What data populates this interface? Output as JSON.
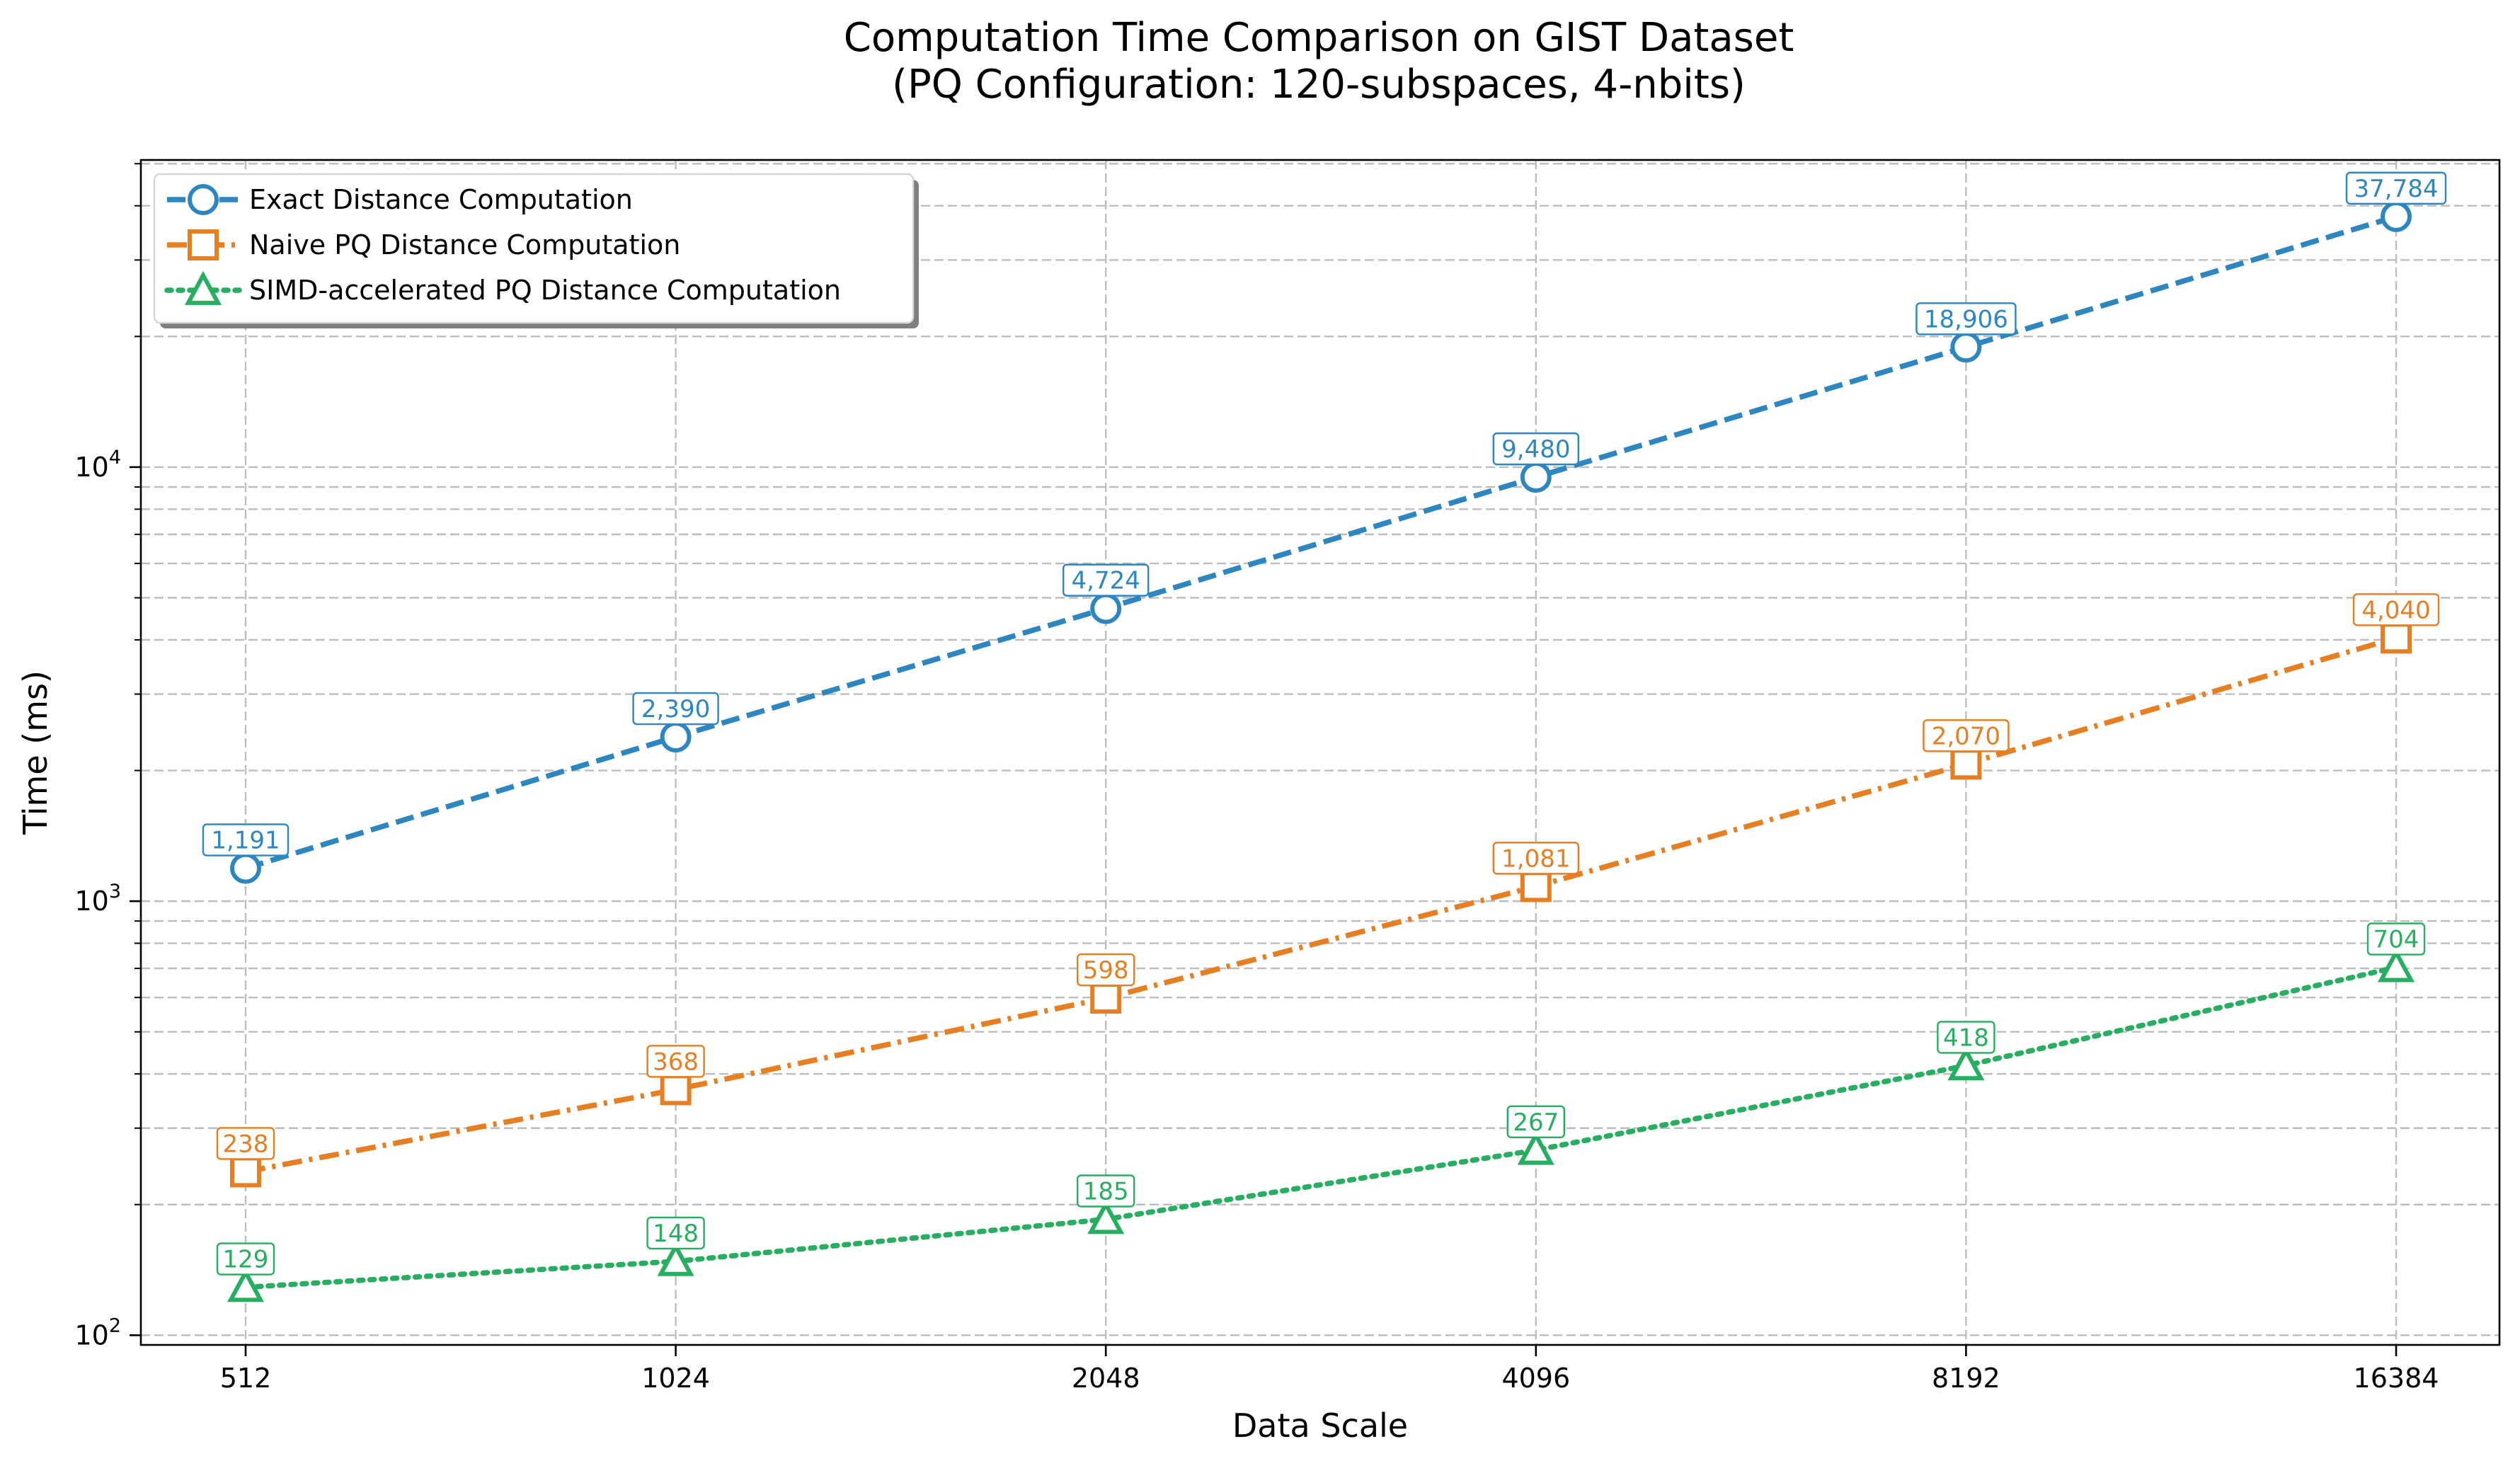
{
  "chart_data": {
    "type": "line",
    "title": "Computation Time Comparison on GIST Dataset",
    "subtitle": "(PQ Configuration: 120-subspaces, 4-nbits)",
    "xlabel": "Data Scale",
    "ylabel": "Time (ms)",
    "x": [
      512,
      1024,
      2048,
      4096,
      8192,
      16384
    ],
    "x_tick_labels": [
      "512",
      "1024",
      "2048",
      "4096",
      "8192",
      "16384"
    ],
    "y_scale": "log",
    "ylim": [
      95,
      51000
    ],
    "y_tick_labels": [
      {
        "value": 100,
        "base": "10",
        "exp": "2"
      },
      {
        "value": 1000,
        "base": "10",
        "exp": "3"
      },
      {
        "value": 10000,
        "base": "10",
        "exp": "4"
      }
    ],
    "grid": true,
    "legend_placement": "top-left",
    "series": [
      {
        "name": "Exact Distance Computation",
        "values": [
          1191,
          2390,
          4724,
          9480,
          18906,
          37784
        ],
        "labels": [
          "1,191",
          "2,390",
          "4,724",
          "9,480",
          "18,906",
          "37,784"
        ],
        "color": "#2e86c1",
        "marker": "circle",
        "line_style": "dashed"
      },
      {
        "name": "Naive PQ Distance Computation",
        "values": [
          238,
          368,
          598,
          1081,
          2070,
          4040
        ],
        "labels": [
          "238",
          "368",
          "598",
          "1,081",
          "2,070",
          "4,040"
        ],
        "color": "#e67e22",
        "marker": "square",
        "line_style": "dash-dot"
      },
      {
        "name": "SIMD-accelerated PQ Distance Computation",
        "values": [
          129,
          148,
          185,
          267,
          418,
          704
        ],
        "labels": [
          "129",
          "148",
          "185",
          "267",
          "418",
          "704"
        ],
        "color": "#27ae60",
        "marker": "triangle",
        "line_style": "dotted"
      }
    ]
  }
}
